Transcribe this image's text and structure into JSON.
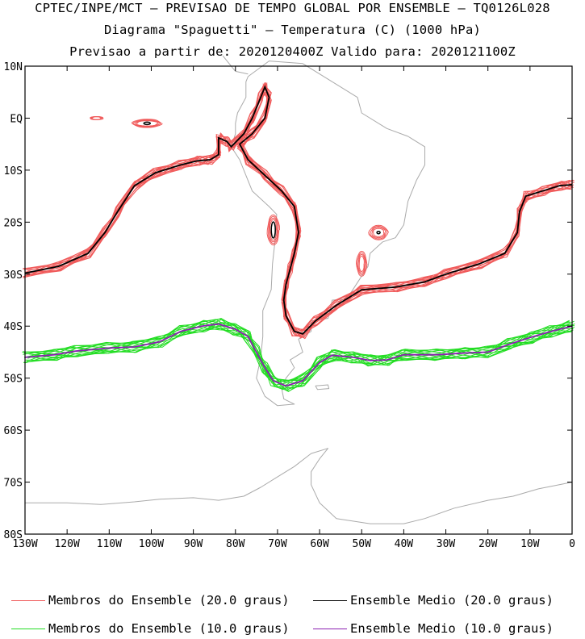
{
  "titles": {
    "line1": "CPTEC/INPE/MCT – PREVISAO DE TEMPO GLOBAL POR ENSEMBLE – TQ0126L028",
    "line2": "Diagrama \"Spaguetti\" – Temperatura (C) (1000 hPa)",
    "line3": "Previsao a partir de: 2020120400Z  Valido para: 2020121100Z"
  },
  "colors": {
    "member20": "#f05a5a",
    "mean20": "#000000",
    "member10": "#22dd22",
    "mean10": "#8a1fb0",
    "coast": "#aaaaaa",
    "frame": "#000000"
  },
  "legend": [
    {
      "label": "Membros do Ensemble (20.0 graus)",
      "color_key": "member20"
    },
    {
      "label": "Ensemble Medio (20.0 graus)",
      "color_key": "mean20"
    },
    {
      "label": "Membros do Ensemble (10.0 graus)",
      "color_key": "member10"
    },
    {
      "label": "Ensemble Medio (10.0 graus)",
      "color_key": "mean10"
    }
  ],
  "chart_data": {
    "type": "line",
    "projection": "lat-lon map",
    "xlim": [
      -130,
      0
    ],
    "ylim": [
      -80,
      10
    ],
    "x_ticks": [
      {
        "v": -130,
        "label": "130W"
      },
      {
        "v": -120,
        "label": "120W"
      },
      {
        "v": -110,
        "label": "110W"
      },
      {
        "v": -100,
        "label": "100W"
      },
      {
        "v": -90,
        "label": "90W"
      },
      {
        "v": -80,
        "label": "80W"
      },
      {
        "v": -70,
        "label": "70W"
      },
      {
        "v": -60,
        "label": "60W"
      },
      {
        "v": -50,
        "label": "50W"
      },
      {
        "v": -40,
        "label": "40W"
      },
      {
        "v": -30,
        "label": "30W"
      },
      {
        "v": -20,
        "label": "20W"
      },
      {
        "v": -10,
        "label": "10W"
      },
      {
        "v": 0,
        "label": "0"
      }
    ],
    "y_ticks": [
      {
        "v": 10,
        "label": "10N"
      },
      {
        "v": 0,
        "label": "EQ"
      },
      {
        "v": -10,
        "label": "10S"
      },
      {
        "v": -20,
        "label": "20S"
      },
      {
        "v": -30,
        "label": "30S"
      },
      {
        "v": -40,
        "label": "40S"
      },
      {
        "v": -50,
        "label": "50S"
      },
      {
        "v": -60,
        "label": "60S"
      },
      {
        "v": -70,
        "label": "70S"
      },
      {
        "v": -80,
        "label": "80S"
      }
    ],
    "series": [
      {
        "name": "Ensemble Medio (20.0 graus)",
        "color_key": "mean20",
        "points": [
          [
            -130,
            -29.8
          ],
          [
            -122,
            -28.5
          ],
          [
            -115,
            -26
          ],
          [
            -111,
            -22
          ],
          [
            -108,
            -18
          ],
          [
            -104,
            -13
          ],
          [
            -99,
            -10.5
          ],
          [
            -93,
            -9
          ],
          [
            -89,
            -8.2
          ],
          [
            -86,
            -8
          ],
          [
            -84,
            -7
          ],
          [
            -84,
            -3.8
          ],
          [
            -82,
            -4.5
          ],
          [
            -81,
            -5.5
          ],
          [
            -78,
            -3
          ],
          [
            -76,
            0
          ],
          [
            -74,
            4
          ],
          [
            -73,
            6
          ],
          [
            -72,
            4
          ],
          [
            -73,
            0
          ],
          [
            -76,
            -3
          ],
          [
            -79,
            -5
          ],
          [
            -77,
            -8
          ],
          [
            -73,
            -11
          ],
          [
            -69,
            -14
          ],
          [
            -66,
            -17
          ],
          [
            -65,
            -22
          ],
          [
            -66,
            -26
          ],
          [
            -67,
            -29
          ],
          [
            -68,
            -32
          ],
          [
            -68.5,
            -35
          ],
          [
            -68,
            -38
          ],
          [
            -66,
            -41
          ],
          [
            -64,
            -41.5
          ],
          [
            -61,
            -39
          ],
          [
            -56,
            -36
          ],
          [
            -50,
            -33
          ],
          [
            -42,
            -32.5
          ],
          [
            -35,
            -31.5
          ],
          [
            -30,
            -30
          ],
          [
            -22,
            -28
          ],
          [
            -16,
            -26
          ],
          [
            -13,
            -22
          ],
          [
            -12.5,
            -18
          ],
          [
            -11,
            -15
          ],
          [
            -7,
            -14
          ],
          [
            -3,
            -13
          ],
          [
            0,
            -12.8
          ]
        ]
      },
      {
        "name": "Ensemble Medio (10.0 graus)",
        "color_key": "mean10",
        "points": [
          [
            -130,
            -46
          ],
          [
            -123,
            -45.5
          ],
          [
            -118,
            -44.8
          ],
          [
            -110,
            -44.2
          ],
          [
            -104,
            -44
          ],
          [
            -98,
            -43
          ],
          [
            -93,
            -41
          ],
          [
            -88,
            -40
          ],
          [
            -84,
            -39.6
          ],
          [
            -80,
            -40.6
          ],
          [
            -77,
            -42
          ],
          [
            -75,
            -45
          ],
          [
            -73,
            -48
          ],
          [
            -71,
            -50.5
          ],
          [
            -68,
            -51.5
          ],
          [
            -64,
            -50.5
          ],
          [
            -60,
            -47
          ],
          [
            -57,
            -45.6
          ],
          [
            -52,
            -46
          ],
          [
            -48,
            -46.6
          ],
          [
            -44,
            -46.5
          ],
          [
            -40,
            -45.5
          ],
          [
            -32,
            -45.5
          ],
          [
            -26,
            -45.2
          ],
          [
            -20,
            -45
          ],
          [
            -15,
            -43.5
          ],
          [
            -10,
            -42.2
          ],
          [
            -5,
            -41
          ],
          [
            0,
            -40
          ]
        ]
      }
    ]
  }
}
